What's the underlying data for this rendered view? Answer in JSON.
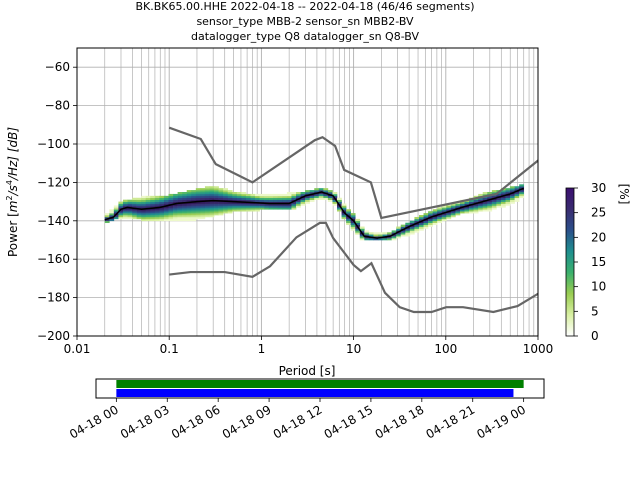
{
  "figure": {
    "title_lines": [
      "BK.BK65.00.HHE   2022-04-18 -- 2022-04-18  (46/46 segments)",
      "sensor_type MBB-2 sensor_sn MBB2-BV",
      "datalogger_type Q8 datalogger_sn Q8-BV"
    ]
  },
  "chart_data": [
    {
      "type": "heatmap",
      "xlabel": "Period [s]",
      "ylabel_prefix": "Power [",
      "ylabel_unit_m": "m",
      "ylabel_unit_m_exp": "2",
      "ylabel_unit_mid": "/s",
      "ylabel_unit_s_exp": "4",
      "ylabel_unit_suffix": "/Hz] [dB]",
      "x_scale": "log",
      "xlim": [
        0.01,
        1000
      ],
      "ylim": [
        -200,
        -50
      ],
      "x_ticks": [
        0.01,
        0.1,
        1,
        10,
        100,
        1000
      ],
      "x_tick_labels": [
        "0.01",
        "0.1",
        "1",
        "10",
        "100",
        "1000"
      ],
      "y_ticks": [
        -200,
        -180,
        -160,
        -140,
        -120,
        -100,
        -80,
        -60
      ],
      "y_tick_labels": [
        "−200",
        "−180",
        "−160",
        "−140",
        "−120",
        "−100",
        "−80",
        "−60"
      ],
      "grid": true,
      "noise_model_high": [
        [
          0.1,
          -91.5
        ],
        [
          0.22,
          -97.4
        ],
        [
          0.32,
          -110.5
        ],
        [
          0.8,
          -120
        ],
        [
          3.8,
          -98
        ],
        [
          4.6,
          -96.5
        ],
        [
          6.3,
          -101
        ],
        [
          7.9,
          -113.5
        ],
        [
          15.4,
          -120
        ],
        [
          20,
          -138.5
        ],
        [
          354.8,
          -126
        ],
        [
          10000,
          -70
        ]
      ],
      "noise_model_low": [
        [
          0.1,
          -168
        ],
        [
          0.17,
          -166.7
        ],
        [
          0.4,
          -166.7
        ],
        [
          0.8,
          -169.2
        ],
        [
          1.24,
          -163.7
        ],
        [
          2.4,
          -148.6
        ],
        [
          4.3,
          -141.1
        ],
        [
          5.0,
          -141.1
        ],
        [
          6.0,
          -149
        ],
        [
          10,
          -163
        ],
        [
          12,
          -166.2
        ],
        [
          15.6,
          -162.1
        ],
        [
          21.9,
          -177.5
        ],
        [
          31.6,
          -185
        ],
        [
          45,
          -187.5
        ],
        [
          70,
          -187.5
        ],
        [
          101,
          -185
        ],
        [
          154,
          -185
        ],
        [
          328,
          -187.5
        ],
        [
          600,
          -184.4
        ],
        [
          1000,
          -178
        ]
      ],
      "median_curve": [
        [
          0.02,
          -139.5
        ],
        [
          0.025,
          -138
        ],
        [
          0.03,
          -134
        ],
        [
          0.035,
          -133
        ],
        [
          0.05,
          -134
        ],
        [
          0.08,
          -133
        ],
        [
          0.12,
          -131
        ],
        [
          0.2,
          -130
        ],
        [
          0.3,
          -129.5
        ],
        [
          0.5,
          -130
        ],
        [
          0.8,
          -130.5
        ],
        [
          1.2,
          -131
        ],
        [
          2,
          -131
        ],
        [
          3,
          -127
        ],
        [
          4.5,
          -125
        ],
        [
          6,
          -127
        ],
        [
          8,
          -136
        ],
        [
          10,
          -140
        ],
        [
          13,
          -148
        ],
        [
          18,
          -149
        ],
        [
          25,
          -148
        ],
        [
          40,
          -143
        ],
        [
          70,
          -138
        ],
        [
          150,
          -133
        ],
        [
          300,
          -129
        ],
        [
          500,
          -126
        ],
        [
          700,
          -123
        ]
      ],
      "density_band": {
        "band_x": [
          0.02,
          0.03,
          0.05,
          0.1,
          0.2,
          0.3,
          0.5,
          1,
          2,
          3,
          4.5,
          6,
          8,
          10,
          13,
          18,
          25,
          40,
          70,
          150,
          300,
          500,
          700
        ],
        "band_upper": [
          -138,
          -130,
          -128,
          -127,
          -124,
          -122,
          -125,
          -127,
          -126,
          -125,
          -123,
          -125,
          -132,
          -137,
          -145,
          -147,
          -146,
          -141,
          -135,
          -130,
          -125,
          -123,
          -121
        ],
        "band_lower": [
          -141,
          -138,
          -139,
          -140,
          -139,
          -137,
          -135,
          -134,
          -134,
          -131,
          -128,
          -130,
          -139,
          -145,
          -150,
          -150,
          -150,
          -147,
          -142,
          -136,
          -134,
          -131,
          -127
        ]
      },
      "colorbar": {
        "label": "[%]",
        "range": [
          0,
          30
        ],
        "ticks": [
          0,
          5,
          10,
          15,
          20,
          25,
          30
        ],
        "tick_labels": [
          "0",
          "5",
          "10",
          "15",
          "20",
          "25",
          "30"
        ],
        "stops": [
          "#ffffff",
          "#d9f0a3",
          "#9acd52",
          "#3bb06d",
          "#1f8f8f",
          "#2b4f8a",
          "#3a2c70",
          "#3b0f70"
        ]
      }
    },
    {
      "type": "timeline",
      "x_tick_labels": [
        "04-18 00",
        "04-18 03",
        "04-18 06",
        "04-18 09",
        "04-18 12",
        "04-18 15",
        "04-18 18",
        "04-18 21",
        "04-19 00"
      ],
      "x_ticks_hours": [
        0,
        3,
        6,
        9,
        12,
        15,
        18,
        21,
        24
      ],
      "xlim_hours": [
        -1.2,
        25.2
      ],
      "bars": [
        {
          "color": "#008000",
          "start_h": 0,
          "end_h": 24.0
        },
        {
          "color": "#0000ff",
          "start_h": 0,
          "end_h": 23.4
        }
      ]
    }
  ]
}
